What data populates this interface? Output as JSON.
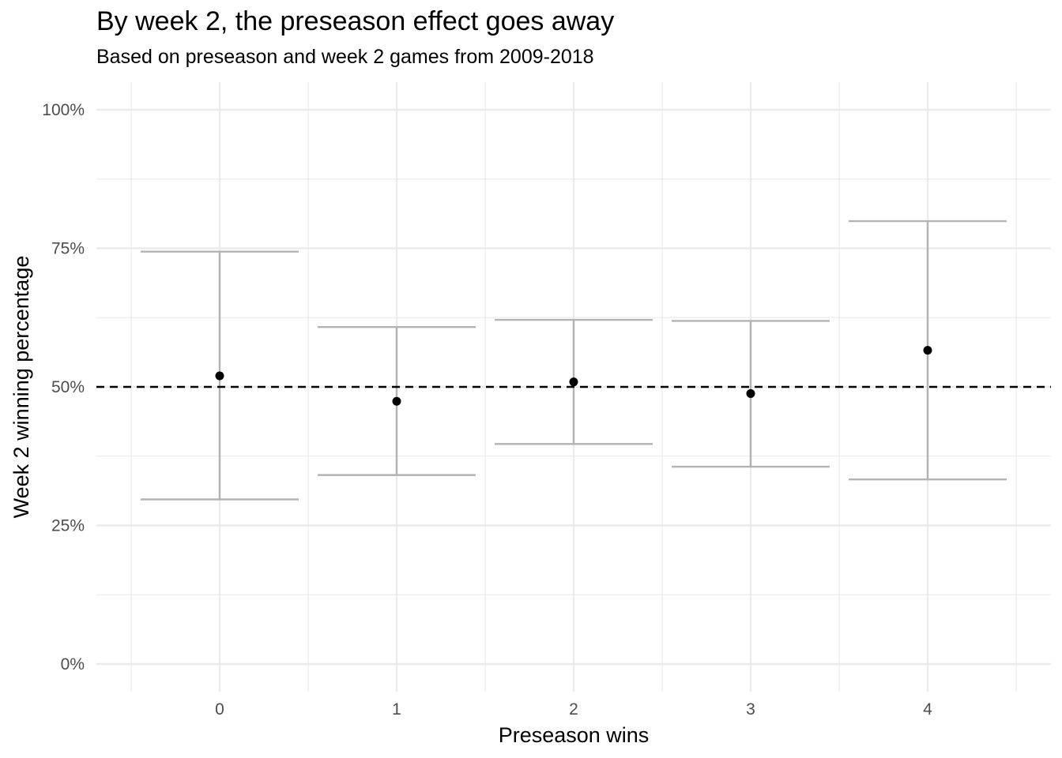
{
  "chart_data": {
    "type": "scatter",
    "title": "By week 2, the preseason effect goes away",
    "subtitle": "Based on preseason and week 2 games from 2009-2018",
    "xlabel": "Preseason wins",
    "ylabel": "Week 2 winning percentage",
    "x_categories": [
      "0",
      "1",
      "2",
      "3",
      "4"
    ],
    "ylim": [
      0,
      1
    ],
    "y_ticks": [
      0,
      0.25,
      0.5,
      0.75,
      1.0
    ],
    "y_tick_labels": [
      "0%",
      "25%",
      "50%",
      "75%",
      "100%"
    ],
    "reference_line": {
      "y": 0.5,
      "style": "dashed"
    },
    "points": [
      {
        "x": "0",
        "y": 0.52,
        "ci_low": 0.297,
        "ci_high": 0.744
      },
      {
        "x": "1",
        "y": 0.474,
        "ci_low": 0.341,
        "ci_high": 0.608
      },
      {
        "x": "2",
        "y": 0.509,
        "ci_low": 0.397,
        "ci_high": 0.621
      },
      {
        "x": "3",
        "y": 0.488,
        "ci_low": 0.356,
        "ci_high": 0.619
      },
      {
        "x": "4",
        "y": 0.566,
        "ci_low": 0.333,
        "ci_high": 0.799
      }
    ],
    "grid": true,
    "legend": "none",
    "colors": {
      "points": "#000000",
      "errorbars": "#b3b3b3",
      "grid": "#ebebeb",
      "reference": "#000000"
    }
  }
}
